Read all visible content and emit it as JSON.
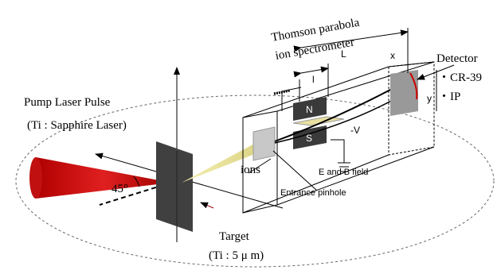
{
  "title": {
    "line1": "Thomson parabola",
    "line2": "ion spectrometer"
  },
  "dimensions": {
    "big_length": "L",
    "small_length": "l",
    "x": "x",
    "y": "y"
  },
  "detector": {
    "label": "Detector",
    "items": [
      "・CR-39",
      "・IP"
    ]
  },
  "magnets": {
    "north": "N",
    "south": "S"
  },
  "voltage": "-V",
  "laser": {
    "line1": "Pump Laser Pulse",
    "line2": "(Ti : Sapphire Laser)"
  },
  "angle": "45°",
  "ions": "ions",
  "field": "E and B field",
  "pinhole": "Entrance pinhole",
  "target": {
    "line1": "Target",
    "line2": "(Ti : 5 μ m)"
  }
}
